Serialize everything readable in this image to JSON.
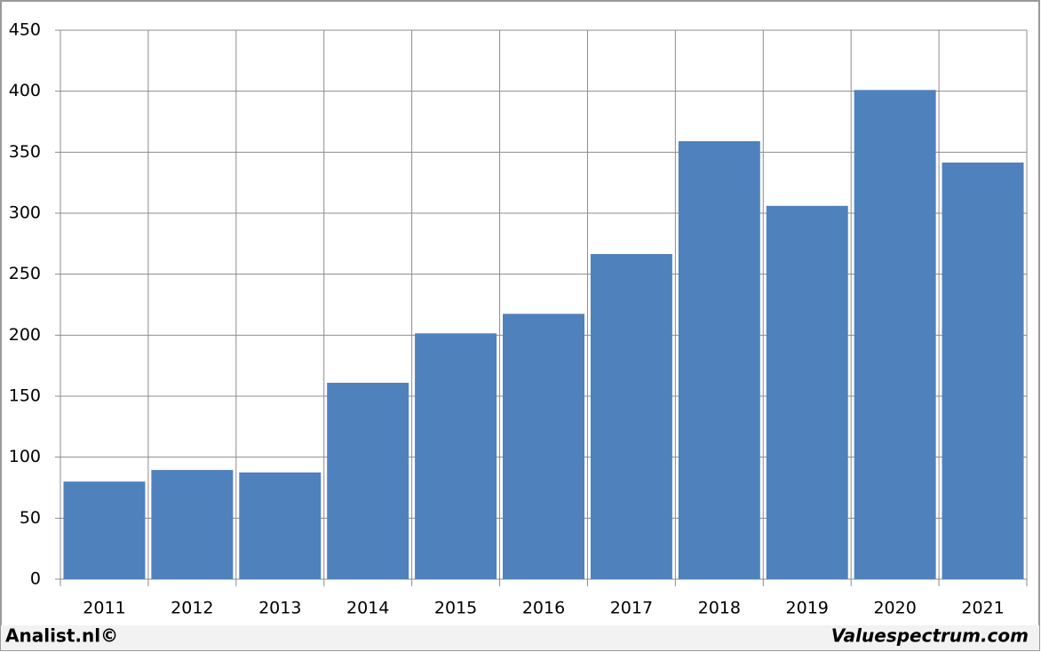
{
  "chart_data": {
    "type": "bar",
    "categories": [
      "2011",
      "2012",
      "2013",
      "2014",
      "2015",
      "2016",
      "2017",
      "2018",
      "2019",
      "2020",
      "2021"
    ],
    "values": [
      80,
      89.5,
      87.5,
      161,
      201.5,
      217.5,
      266.5,
      359,
      306,
      401,
      341.5
    ],
    "color": "#4f81bd",
    "ylim": [
      0,
      450
    ],
    "yticks": [
      0,
      50,
      100,
      150,
      200,
      250,
      300,
      350,
      400,
      450
    ],
    "grid": true,
    "annotations": [
      "Analist.nl©",
      "Valuespectrum.com"
    ]
  }
}
